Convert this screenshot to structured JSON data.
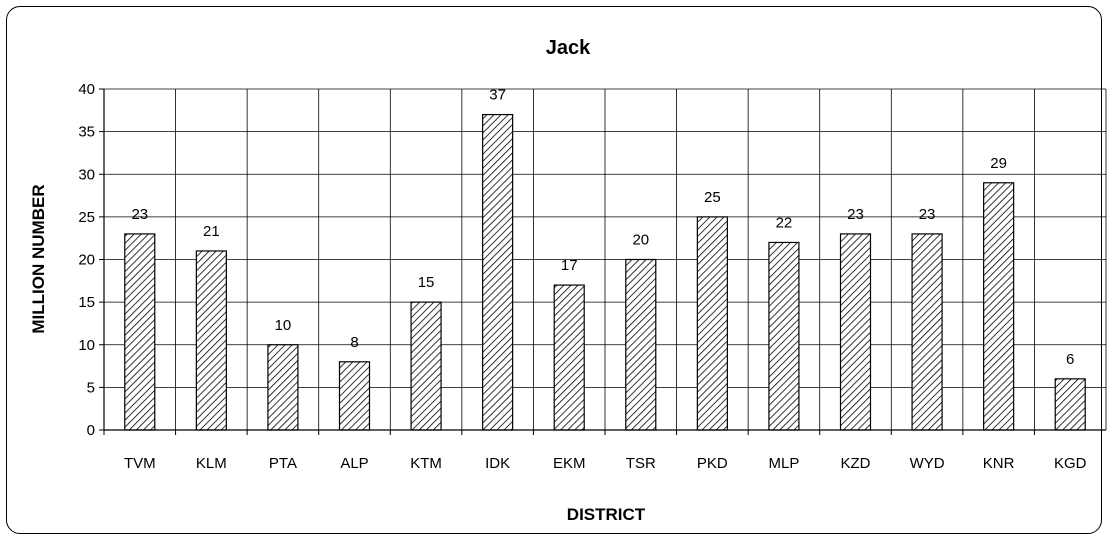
{
  "chart_data": {
    "type": "bar",
    "title": "Jack",
    "xlabel": "DISTRICT",
    "ylabel": "MILLION NUMBER",
    "categories": [
      "TVM",
      "KLM",
      "PTA",
      "ALP",
      "KTM",
      "IDK",
      "EKM",
      "TSR",
      "PKD",
      "MLP",
      "KZD",
      "WYD",
      "KNR",
      "KGD"
    ],
    "values": [
      23,
      21,
      10,
      8,
      15,
      37,
      17,
      20,
      25,
      22,
      23,
      23,
      29,
      6
    ],
    "data_labels": [
      "23",
      "21",
      "10",
      "8",
      "15",
      "37",
      "17",
      "20",
      "25",
      "22",
      "23",
      "23",
      "29",
      "6"
    ],
    "ylim": [
      0,
      40
    ],
    "yticks": [
      0,
      5,
      10,
      15,
      20,
      25,
      30,
      35,
      40
    ],
    "grid": "vertical and horizontal",
    "bar_pattern": "diagonal-hatch",
    "colors": {
      "bar_fill": "#ffffff",
      "hatch": "#000000",
      "grid": "#000000"
    }
  }
}
